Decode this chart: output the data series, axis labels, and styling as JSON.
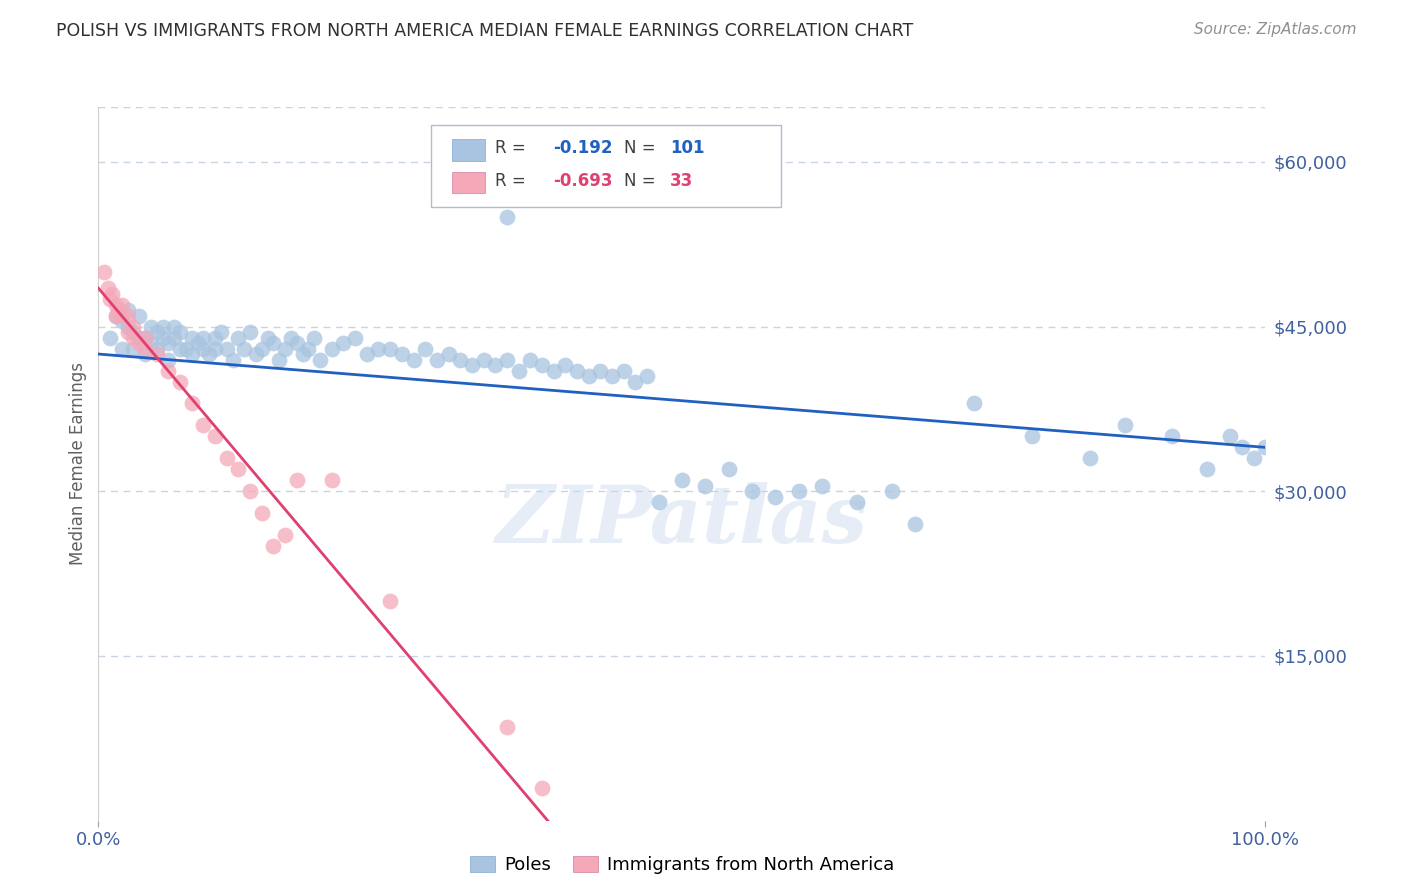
{
  "title": "POLISH VS IMMIGRANTS FROM NORTH AMERICA MEDIAN FEMALE EARNINGS CORRELATION CHART",
  "source": "Source: ZipAtlas.com",
  "ylabel": "Median Female Earnings",
  "xlim": [
    0.0,
    1.0
  ],
  "ylim": [
    0,
    65000
  ],
  "yticks": [
    0,
    15000,
    30000,
    45000,
    60000
  ],
  "ytick_labels": [
    "",
    "$15,000",
    "$30,000",
    "$45,000",
    "$60,000"
  ],
  "xtick_labels": [
    "0.0%",
    "100.0%"
  ],
  "watermark": "ZIPatlas",
  "legend_blue_R": "-0.192",
  "legend_blue_N": "101",
  "legend_pink_R": "-0.693",
  "legend_pink_N": "33",
  "blue_color": "#a8c4e0",
  "pink_color": "#f4a8b8",
  "blue_line_color": "#2060c0",
  "pink_line_color": "#e04070",
  "title_color": "#303030",
  "axis_label_color": "#606060",
  "tick_color": "#4060a0",
  "grid_color": "#c8d4e4",
  "blue_scatter_x": [
    0.01,
    0.015,
    0.02,
    0.02,
    0.025,
    0.025,
    0.03,
    0.03,
    0.035,
    0.035,
    0.04,
    0.04,
    0.045,
    0.045,
    0.05,
    0.05,
    0.055,
    0.055,
    0.06,
    0.06,
    0.065,
    0.065,
    0.07,
    0.07,
    0.075,
    0.08,
    0.08,
    0.085,
    0.09,
    0.09,
    0.095,
    0.1,
    0.1,
    0.105,
    0.11,
    0.115,
    0.12,
    0.125,
    0.13,
    0.135,
    0.14,
    0.145,
    0.15,
    0.155,
    0.16,
    0.165,
    0.17,
    0.175,
    0.18,
    0.185,
    0.19,
    0.2,
    0.21,
    0.22,
    0.23,
    0.24,
    0.25,
    0.26,
    0.27,
    0.28,
    0.29,
    0.3,
    0.31,
    0.32,
    0.33,
    0.34,
    0.35,
    0.36,
    0.37,
    0.38,
    0.39,
    0.4,
    0.41,
    0.42,
    0.43,
    0.44,
    0.45,
    0.46,
    0.47,
    0.48,
    0.5,
    0.52,
    0.54,
    0.56,
    0.58,
    0.6,
    0.62,
    0.65,
    0.68,
    0.7,
    0.75,
    0.8,
    0.85,
    0.88,
    0.92,
    0.95,
    0.97,
    0.98,
    0.99,
    1.0,
    0.35
  ],
  "blue_scatter_y": [
    44000,
    46000,
    45500,
    43000,
    45000,
    46500,
    44500,
    43000,
    46000,
    44000,
    44000,
    42500,
    45000,
    43500,
    44500,
    43000,
    44000,
    45000,
    43500,
    42000,
    44000,
    45000,
    43000,
    44500,
    43000,
    44000,
    42500,
    43500,
    44000,
    43000,
    42500,
    44000,
    43000,
    44500,
    43000,
    42000,
    44000,
    43000,
    44500,
    42500,
    43000,
    44000,
    43500,
    42000,
    43000,
    44000,
    43500,
    42500,
    43000,
    44000,
    42000,
    43000,
    43500,
    44000,
    42500,
    43000,
    43000,
    42500,
    42000,
    43000,
    42000,
    42500,
    42000,
    41500,
    42000,
    41500,
    42000,
    41000,
    42000,
    41500,
    41000,
    41500,
    41000,
    40500,
    41000,
    40500,
    41000,
    40000,
    40500,
    29000,
    31000,
    30500,
    32000,
    30000,
    29500,
    30000,
    30500,
    29000,
    30000,
    27000,
    38000,
    35000,
    33000,
    36000,
    35000,
    32000,
    35000,
    34000,
    33000,
    34000,
    55000
  ],
  "pink_scatter_x": [
    0.005,
    0.008,
    0.01,
    0.012,
    0.015,
    0.015,
    0.018,
    0.02,
    0.02,
    0.025,
    0.025,
    0.03,
    0.03,
    0.035,
    0.04,
    0.04,
    0.05,
    0.06,
    0.07,
    0.08,
    0.09,
    0.1,
    0.11,
    0.12,
    0.13,
    0.14,
    0.15,
    0.16,
    0.25,
    0.17,
    0.2,
    0.35,
    0.38
  ],
  "pink_scatter_y": [
    50000,
    48500,
    47500,
    48000,
    47000,
    46000,
    46500,
    46000,
    47000,
    44500,
    46000,
    45000,
    44000,
    43500,
    44000,
    43000,
    42500,
    41000,
    40000,
    38000,
    36000,
    35000,
    33000,
    32000,
    30000,
    28000,
    25000,
    26000,
    20000,
    31000,
    31000,
    8500,
    3000
  ],
  "blue_line_x": [
    0.0,
    1.0
  ],
  "blue_line_y": [
    42500,
    34000
  ],
  "pink_line_x": [
    0.0,
    0.385
  ],
  "pink_line_y": [
    48500,
    0
  ]
}
